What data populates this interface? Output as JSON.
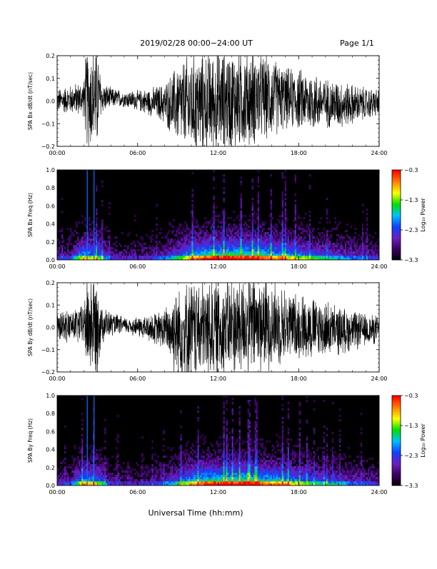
{
  "header": {
    "title": "2019/02/28  00:00−24:00 UT",
    "page": "Page 1/1"
  },
  "x_axis_title": "Universal Time (hh:mm)",
  "colorbar": {
    "label": "Log₁₀ Power",
    "ticks": [
      "−0.3",
      "−1.3",
      "−2.3",
      "−3.3"
    ]
  },
  "colors": {
    "background": "#ffffff",
    "trace": "#000000",
    "spectrogram_background": "#000000",
    "colormap": [
      "#000000",
      "#3a0060",
      "#6a20c0",
      "#1040ff",
      "#00c0ff",
      "#00e000",
      "#ffff00",
      "#ff8000",
      "#ff0000"
    ]
  },
  "chart_data": [
    {
      "type": "line",
      "ylabel": "SPA Bx dB/dt (nT/sec)",
      "xlim": [
        0,
        24
      ],
      "ylim": [
        -0.2,
        0.2
      ],
      "x_ticks": [
        "00:00",
        "06:00",
        "12:00",
        "18:00",
        "24:00"
      ],
      "y_ticks": [
        "0.2",
        "0.1",
        "0.0",
        "−0.1",
        "−0.2"
      ],
      "envelope": {
        "hours": [
          0,
          1,
          2,
          2.2,
          2.5,
          3,
          3.3,
          4,
          5,
          6,
          7,
          8,
          9,
          10,
          11,
          12,
          13,
          14,
          15,
          16,
          17,
          18,
          19,
          20,
          21,
          22,
          23,
          24
        ],
        "amplitude": [
          0.06,
          0.07,
          0.09,
          0.25,
          0.25,
          0.25,
          0.08,
          0.05,
          0.04,
          0.05,
          0.07,
          0.1,
          0.2,
          0.25,
          0.25,
          0.25,
          0.25,
          0.25,
          0.22,
          0.2,
          0.15,
          0.15,
          0.15,
          0.12,
          0.12,
          0.1,
          0.08,
          0.07
        ]
      }
    },
    {
      "type": "heatmap",
      "ylabel": "SPA Bx Freq (Hz)",
      "xlim": [
        0,
        24
      ],
      "ylim": [
        0.0,
        1.0
      ],
      "x_ticks": [
        "00:00",
        "06:00",
        "12:00",
        "18:00",
        "24:00"
      ],
      "y_ticks": [
        "1.0",
        "0.8",
        "0.6",
        "0.4",
        "0.2",
        "0.0"
      ],
      "zlim": [
        -3.3,
        -0.3
      ],
      "colorbar_label": "Log₁₀ Power",
      "activity": {
        "hours": [
          0,
          1,
          2,
          3,
          4,
          5,
          6,
          7,
          8,
          9,
          10,
          11,
          12,
          13,
          14,
          15,
          16,
          17,
          18,
          19,
          20,
          21,
          22,
          23,
          24
        ],
        "level": [
          0.25,
          0.3,
          0.7,
          0.6,
          0.25,
          0.2,
          0.2,
          0.25,
          0.35,
          0.5,
          0.7,
          0.8,
          0.85,
          0.85,
          0.85,
          0.8,
          0.75,
          0.7,
          0.6,
          0.5,
          0.45,
          0.4,
          0.35,
          0.3,
          0.25
        ]
      }
    },
    {
      "type": "line",
      "ylabel": "SPA By dB/dt (nT/sec)",
      "xlim": [
        0,
        24
      ],
      "ylim": [
        -0.2,
        0.2
      ],
      "x_ticks": [
        "00:00",
        "06:00",
        "12:00",
        "18:00",
        "24:00"
      ],
      "y_ticks": [
        "0.2",
        "0.1",
        "0.0",
        "−0.1",
        "−0.2"
      ],
      "envelope": {
        "hours": [
          0,
          1,
          2,
          2.2,
          2.5,
          3,
          3.3,
          4,
          5,
          6,
          7,
          8,
          9,
          10,
          11,
          12,
          13,
          14,
          15,
          16,
          17,
          18,
          19,
          20,
          21,
          22,
          23,
          24
        ],
        "amplitude": [
          0.07,
          0.08,
          0.1,
          0.25,
          0.25,
          0.25,
          0.1,
          0.06,
          0.04,
          0.05,
          0.07,
          0.1,
          0.25,
          0.25,
          0.25,
          0.25,
          0.25,
          0.25,
          0.25,
          0.22,
          0.18,
          0.16,
          0.16,
          0.14,
          0.12,
          0.1,
          0.08,
          0.07
        ]
      }
    },
    {
      "type": "heatmap",
      "ylabel": "SPA By Freq (Hz)",
      "xlim": [
        0,
        24
      ],
      "ylim": [
        0.0,
        1.0
      ],
      "x_ticks": [
        "00:00",
        "06:00",
        "12:00",
        "18:00",
        "24:00"
      ],
      "y_ticks": [
        "1.0",
        "0.8",
        "0.6",
        "0.4",
        "0.2",
        "0.0"
      ],
      "zlim": [
        -3.3,
        -0.3
      ],
      "colorbar_label": "Log₁₀ Power",
      "activity": {
        "hours": [
          0,
          1,
          2,
          3,
          4,
          5,
          6,
          7,
          8,
          9,
          10,
          11,
          12,
          13,
          14,
          15,
          16,
          17,
          18,
          19,
          20,
          21,
          22,
          23,
          24
        ],
        "level": [
          0.25,
          0.3,
          0.7,
          0.6,
          0.25,
          0.2,
          0.2,
          0.25,
          0.35,
          0.5,
          0.7,
          0.8,
          0.85,
          0.85,
          0.85,
          0.8,
          0.75,
          0.7,
          0.6,
          0.5,
          0.45,
          0.4,
          0.35,
          0.3,
          0.25
        ]
      }
    }
  ]
}
